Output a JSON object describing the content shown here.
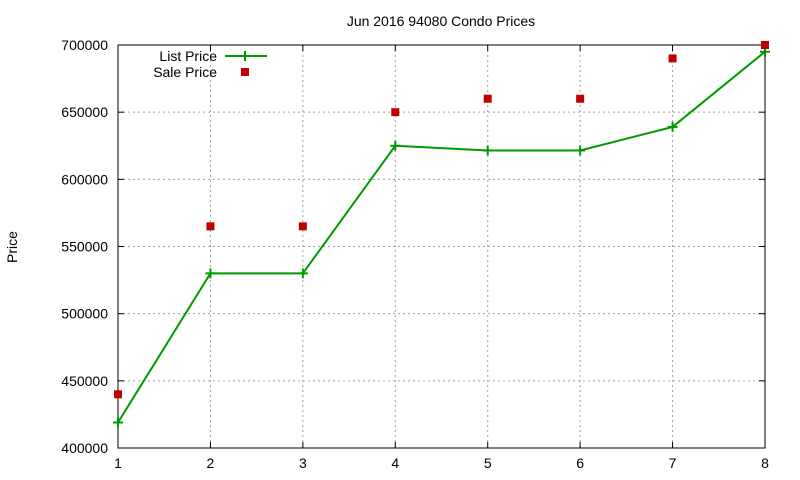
{
  "chart_data": {
    "type": "line",
    "title": "Jun 2016 94080 Condo Prices",
    "xlabel": "",
    "ylabel": "Price",
    "xlim": [
      1,
      8
    ],
    "ylim": [
      400000,
      700000
    ],
    "x_ticks": [
      "1",
      "2",
      "3",
      "4",
      "5",
      "6",
      "7",
      "8"
    ],
    "y_ticks": [
      "400000",
      "450000",
      "500000",
      "550000",
      "600000",
      "650000",
      "700000"
    ],
    "grid": true,
    "legend_position": "top-left",
    "x": [
      1,
      2,
      3,
      4,
      5,
      6,
      7,
      8
    ],
    "series": [
      {
        "name": "List Price",
        "style": "line-with-plus-markers",
        "color": "#009900",
        "values": [
          419000,
          530000,
          530000,
          625000,
          621500,
          621500,
          639000,
          695000
        ]
      },
      {
        "name": "Sale Price",
        "style": "square-markers",
        "color": "#c00000",
        "values": [
          440000,
          565000,
          565000,
          650000,
          660000,
          660000,
          690000,
          700000
        ]
      }
    ]
  }
}
